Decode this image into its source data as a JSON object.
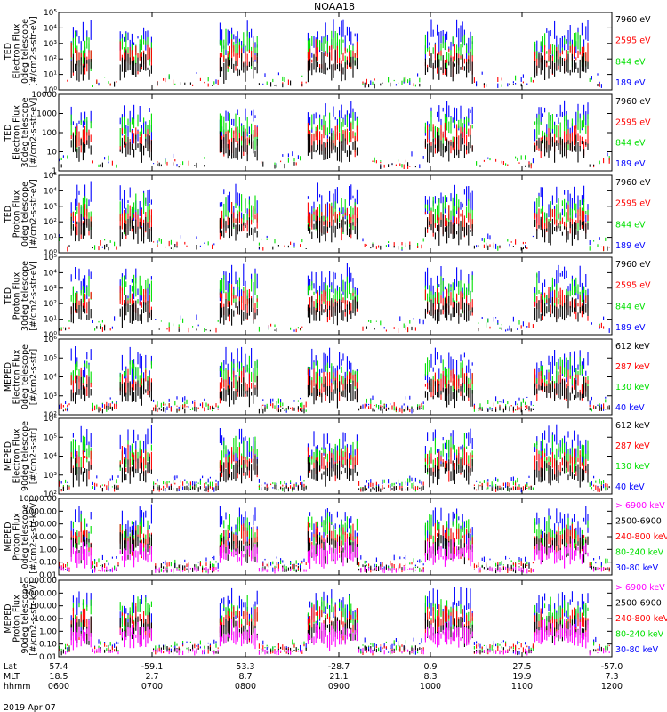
{
  "title": "NOAA18",
  "date_label": "2019 Apr 07",
  "colors": {
    "black": "#000000",
    "red": "#ff0000",
    "green": "#00e000",
    "blue": "#0000ff",
    "magenta": "#ff00ff",
    "axis": "#000000",
    "background": "#ffffff"
  },
  "chart_data": [
    {
      "type": "scatter",
      "ylabel": [
        "TED",
        "Electron Flux",
        "0deg telescope",
        "[#/cm2-s-str-eV]"
      ],
      "yscale": "log",
      "ylim": [
        1,
        1000000
      ],
      "yticks": [
        "10⁰",
        "10¹",
        "10²",
        "10³",
        "10⁴",
        "10⁵"
      ],
      "series": [
        {
          "name": "7960 eV",
          "color": "#000000"
        },
        {
          "name": "2595 eV",
          "color": "#ff0000"
        },
        {
          "name": "844 eV",
          "color": "#00e000"
        },
        {
          "name": "189 eV",
          "color": "#0000ff"
        }
      ]
    },
    {
      "type": "scatter",
      "ylabel": [
        "TED",
        "Electron Flux",
        "30deg telescope",
        "[#/cm2-s-str-eV]"
      ],
      "yscale": "log",
      "ylim": [
        1,
        10000
      ],
      "yticks": [
        "1",
        "10",
        "100",
        "1000",
        "10000"
      ],
      "series": [
        {
          "name": "7960 eV",
          "color": "#000000"
        },
        {
          "name": "2595 eV",
          "color": "#ff0000"
        },
        {
          "name": "844 eV",
          "color": "#00e000"
        },
        {
          "name": "189 eV",
          "color": "#0000ff"
        }
      ]
    },
    {
      "type": "scatter",
      "ylabel": [
        "TED",
        "Proton Flux",
        "0deg telescope",
        "[#/cm2-s-str-eV]"
      ],
      "yscale": "log",
      "ylim": [
        1,
        100000
      ],
      "yticks": [
        "10⁰",
        "10¹",
        "10²",
        "10³",
        "10⁴",
        "10⁵"
      ],
      "series": [
        {
          "name": "7960 eV",
          "color": "#000000"
        },
        {
          "name": "2595 eV",
          "color": "#ff0000"
        },
        {
          "name": "844 eV",
          "color": "#00e000"
        },
        {
          "name": "189 eV",
          "color": "#0000ff"
        }
      ]
    },
    {
      "type": "scatter",
      "ylabel": [
        "TED",
        "Proton Flux",
        "30deg telescope",
        "[#/cm2-s-str-eV]"
      ],
      "yscale": "log",
      "ylim": [
        1,
        100000
      ],
      "yticks": [
        "10⁰",
        "10¹",
        "10²",
        "10³",
        "10⁴",
        "10⁵"
      ],
      "series": [
        {
          "name": "7960 eV",
          "color": "#000000"
        },
        {
          "name": "2595 eV",
          "color": "#ff0000"
        },
        {
          "name": "844 eV",
          "color": "#00e000"
        },
        {
          "name": "189 eV",
          "color": "#0000ff"
        }
      ]
    },
    {
      "type": "scatter",
      "ylabel": [
        "MEPED",
        "Electron Flux",
        "0deg telescope",
        "[#/cm2-s-str]"
      ],
      "yscale": "log",
      "ylim": [
        100,
        1000000
      ],
      "yticks": [
        "10²",
        "10³",
        "10⁴",
        "10⁵",
        "10⁶"
      ],
      "series": [
        {
          "name": "612 keV",
          "color": "#000000"
        },
        {
          "name": "287 keV",
          "color": "#ff0000"
        },
        {
          "name": "130 keV",
          "color": "#00e000"
        },
        {
          "name": "40 keV",
          "color": "#0000ff"
        }
      ]
    },
    {
      "type": "scatter",
      "ylabel": [
        "MEPED",
        "Electron Flux",
        "90deg telescope",
        "[#/cm2-s-str]"
      ],
      "yscale": "log",
      "ylim": [
        100,
        1000000
      ],
      "yticks": [
        "10²",
        "10³",
        "10⁴",
        "10⁵",
        "10⁶"
      ],
      "series": [
        {
          "name": "612 keV",
          "color": "#000000"
        },
        {
          "name": "287 keV",
          "color": "#ff0000"
        },
        {
          "name": "130 keV",
          "color": "#00e000"
        },
        {
          "name": "40 keV",
          "color": "#0000ff"
        }
      ]
    },
    {
      "type": "scatter",
      "ylabel": [
        "MEPED",
        "Proton Flux",
        "0deg telescope",
        "[#/cm2-s-str-keV]"
      ],
      "yscale": "log",
      "ylim": [
        0.01,
        10000
      ],
      "yticks": [
        "0.01",
        "0.10",
        "1.00",
        "10.00",
        "100.00",
        "1000.00",
        "10000.00"
      ],
      "series": [
        {
          "name": "> 6900 keV",
          "color": "#ff00ff"
        },
        {
          "name": "2500-6900",
          "color": "#000000"
        },
        {
          "name": "240-800 keV",
          "color": "#ff0000"
        },
        {
          "name": "80-240 keV",
          "color": "#00e000"
        },
        {
          "name": "30-80 keV",
          "color": "#0000ff"
        }
      ]
    },
    {
      "type": "scatter",
      "ylabel": [
        "MEPED",
        "Proton Flux",
        "90deg telescope",
        "[#/cm2-s-str-keV]"
      ],
      "yscale": "log",
      "ylim": [
        0.01,
        10000
      ],
      "yticks": [
        "0.01",
        "0.10",
        "1.00",
        "10.00",
        "100.00",
        "1000.00",
        "10000.00"
      ],
      "series": [
        {
          "name": "> 6900 keV",
          "color": "#ff00ff"
        },
        {
          "name": "2500-6900",
          "color": "#000000"
        },
        {
          "name": "240-800 keV",
          "color": "#ff0000"
        },
        {
          "name": "80-240 keV",
          "color": "#00e000"
        },
        {
          "name": "30-80 keV",
          "color": "#0000ff"
        }
      ]
    }
  ],
  "x_axis": {
    "row_labels": [
      "Lat",
      "MLT",
      "hhmm"
    ],
    "ticks": [
      {
        "lat": "57.4",
        "mlt": "18.5",
        "hhmm": "0600"
      },
      {
        "lat": "-59.1",
        "mlt": "2.7",
        "hhmm": "0700"
      },
      {
        "lat": "53.3",
        "mlt": "8.7",
        "hhmm": "0800"
      },
      {
        "lat": "-28.7",
        "mlt": "21.1",
        "hhmm": "0900"
      },
      {
        "lat": "0.9",
        "mlt": "8.3",
        "hhmm": "1000"
      },
      {
        "lat": "27.5",
        "mlt": "19.9",
        "hhmm": "1100"
      },
      {
        "lat": "-57.0",
        "mlt": "7.3",
        "hhmm": "1200"
      }
    ]
  }
}
